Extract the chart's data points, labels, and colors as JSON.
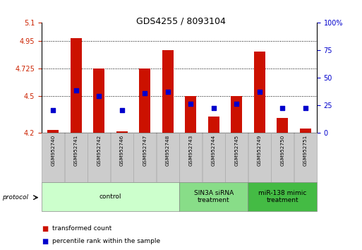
{
  "title": "GDS4255 / 8093104",
  "samples": [
    "GSM952740",
    "GSM952741",
    "GSM952742",
    "GSM952746",
    "GSM952747",
    "GSM952748",
    "GSM952743",
    "GSM952744",
    "GSM952745",
    "GSM952749",
    "GSM952750",
    "GSM952751"
  ],
  "transformed_count": [
    4.22,
    4.97,
    4.725,
    4.21,
    4.725,
    4.875,
    4.5,
    4.33,
    4.5,
    4.86,
    4.32,
    4.23
  ],
  "percentile_rank": [
    20,
    38,
    33,
    20,
    36,
    37,
    26,
    22,
    26,
    37,
    22,
    22
  ],
  "groups": [
    {
      "label": "control",
      "start": 0,
      "end": 6,
      "color": "#ccffcc"
    },
    {
      "label": "SIN3A siRNA\ntreatment",
      "start": 6,
      "end": 9,
      "color": "#88dd88"
    },
    {
      "label": "miR-138 mimic\ntreatment",
      "start": 9,
      "end": 12,
      "color": "#44bb44"
    }
  ],
  "ylim_left": [
    4.2,
    5.1
  ],
  "ylim_right": [
    0,
    100
  ],
  "yticks_left": [
    4.2,
    4.5,
    4.725,
    4.95,
    5.1
  ],
  "yticks_right": [
    0,
    25,
    50,
    75,
    100
  ],
  "bar_color": "#cc1100",
  "dot_color": "#0000cc",
  "bar_width": 0.5,
  "dot_size": 25,
  "ylabel_left_color": "#cc2200",
  "ylabel_right_color": "#0000cc"
}
